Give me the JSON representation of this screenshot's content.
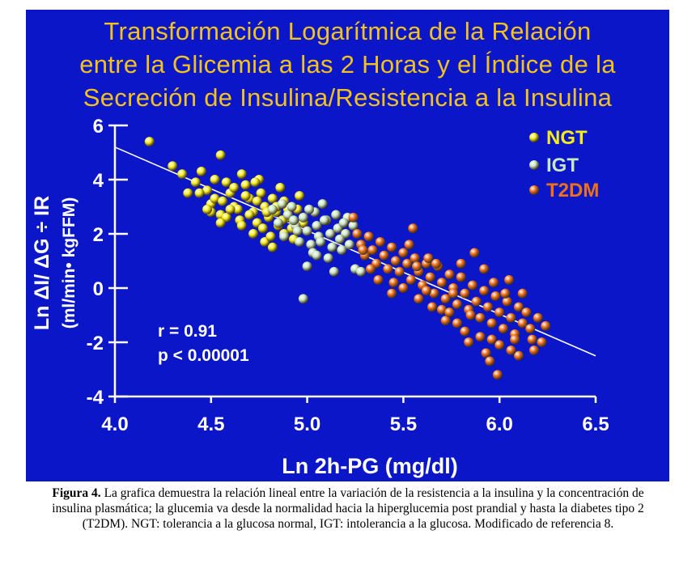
{
  "title_lines": [
    "Transformación Logarítmica de la Relación",
    "entre la Glicemia a las 2 Horas y el Índice de la",
    "Secreción de Insulina/Resistencia a la Insulina"
  ],
  "caption": {
    "label": "Figura 4.",
    "text": "La grafica demuestra la relación lineal entre la variación de la resistencia a la insulina y la concentración de insulina plasmática; la glucemia va desde la normalidad hacia la hiperglucemia post prandial y hasta la diabetes tipo 2 (T2DM). NGT: tolerancia a la glucosa normal, IGT: intolerancia a la glucosa. Modificado de referencia 8."
  },
  "colors": {
    "background": "#0a16c8",
    "title": "#f2c21e",
    "axis": "#ffffff",
    "NGT": "#f5ec1a",
    "IGT": "#c8e6c0",
    "T2DM": "#f07018",
    "regression": "#ffffff"
  },
  "chart_data": {
    "type": "scatter",
    "xlabel": "Ln 2h-PG (mg/dl)",
    "ylabel": "Ln ΔI/ ΔG ÷ IR",
    "ylabel2": "(ml/min• kgFFM)",
    "xlim": [
      4.0,
      6.5
    ],
    "ylim": [
      -4,
      6
    ],
    "xticks": [
      "4.0",
      "4.5",
      "5.0",
      "5.5",
      "6.0",
      "6.5"
    ],
    "yticks": [
      "6",
      "4",
      "2",
      "0",
      "-2",
      "-4"
    ],
    "grid": false,
    "legend_position": "top-right",
    "annotations": [
      "r = 0.91",
      "p < 0.00001"
    ],
    "regression": {
      "x": [
        4.0,
        6.5
      ],
      "y": [
        5.2,
        -2.5
      ]
    },
    "series": [
      {
        "name": "NGT",
        "color_key": "NGT",
        "points": [
          [
            4.18,
            5.4
          ],
          [
            4.55,
            4.9
          ],
          [
            4.3,
            4.5
          ],
          [
            4.35,
            4.2
          ],
          [
            4.38,
            3.5
          ],
          [
            4.45,
            4.3
          ],
          [
            4.42,
            3.9
          ],
          [
            4.48,
            3.6
          ],
          [
            4.5,
            3.1
          ],
          [
            4.52,
            3.3
          ],
          [
            4.55,
            2.7
          ],
          [
            4.58,
            3.9
          ],
          [
            4.6,
            3.5
          ],
          [
            4.62,
            3.0
          ],
          [
            4.65,
            2.5
          ],
          [
            4.66,
            4.2
          ],
          [
            4.68,
            3.8
          ],
          [
            4.7,
            3.3
          ],
          [
            4.72,
            2.8
          ],
          [
            4.74,
            2.4
          ],
          [
            4.75,
            4.0
          ],
          [
            4.76,
            3.5
          ],
          [
            4.78,
            3.0
          ],
          [
            4.8,
            2.6
          ],
          [
            4.82,
            3.3
          ],
          [
            4.84,
            2.8
          ],
          [
            4.85,
            2.3
          ],
          [
            4.86,
            3.7
          ],
          [
            4.88,
            2.0
          ],
          [
            4.88,
            3.2
          ],
          [
            4.9,
            2.6
          ],
          [
            4.92,
            2.2
          ],
          [
            4.93,
            1.8
          ],
          [
            4.95,
            2.9
          ],
          [
            4.96,
            3.4
          ],
          [
            4.98,
            2.4
          ],
          [
            4.82,
            1.5
          ],
          [
            4.78,
            1.7
          ],
          [
            4.72,
            2.0
          ],
          [
            4.64,
            2.9
          ],
          [
            4.58,
            2.6
          ],
          [
            4.5,
            2.8
          ],
          [
            4.44,
            3.5
          ],
          [
            4.68,
            3.4
          ],
          [
            4.62,
            3.7
          ],
          [
            4.6,
            2.9
          ],
          [
            4.52,
            4.0
          ],
          [
            4.56,
            3.2
          ],
          [
            4.7,
            2.7
          ],
          [
            4.73,
            3.9
          ],
          [
            4.77,
            2.2
          ],
          [
            4.81,
            1.9
          ],
          [
            4.84,
            3.0
          ],
          [
            4.9,
            2.9
          ],
          [
            4.87,
            2.5
          ],
          [
            4.55,
            2.4
          ],
          [
            4.48,
            2.9
          ],
          [
            4.66,
            2.3
          ],
          [
            4.74,
            3.2
          ],
          [
            4.79,
            2.8
          ]
        ]
      },
      {
        "name": "IGT",
        "color_key": "IGT",
        "points": [
          [
            4.82,
            2.9
          ],
          [
            4.85,
            2.4
          ],
          [
            4.88,
            1.9
          ],
          [
            4.9,
            2.7
          ],
          [
            4.92,
            3.0
          ],
          [
            4.94,
            2.3
          ],
          [
            4.96,
            1.7
          ],
          [
            4.98,
            2.6
          ],
          [
            5.0,
            2.1
          ],
          [
            5.02,
            1.6
          ],
          [
            5.04,
            2.8
          ],
          [
            5.05,
            2.3
          ],
          [
            5.06,
            1.9
          ],
          [
            5.08,
            3.1
          ],
          [
            5.1,
            2.5
          ],
          [
            5.12,
            2.0
          ],
          [
            5.13,
            1.5
          ],
          [
            5.15,
            2.7
          ],
          [
            5.16,
            2.2
          ],
          [
            5.18,
            1.4
          ],
          [
            5.2,
            2.0
          ],
          [
            5.22,
            1.6
          ],
          [
            5.24,
            2.3
          ],
          [
            5.25,
            0.7
          ],
          [
            5.14,
            0.6
          ],
          [
            5.0,
            0.8
          ],
          [
            4.98,
            -0.4
          ],
          [
            5.28,
            0.6
          ],
          [
            4.93,
            2.5
          ],
          [
            5.03,
            1.3
          ],
          [
            5.09,
            2.5
          ],
          [
            5.17,
            1.8
          ],
          [
            4.87,
            3.1
          ],
          [
            5.21,
            2.6
          ],
          [
            5.11,
            1.1
          ],
          [
            5.07,
            1.7
          ],
          [
            4.95,
            2.1
          ],
          [
            5.01,
            2.9
          ],
          [
            5.19,
            2.4
          ],
          [
            5.05,
            1.2
          ]
        ]
      },
      {
        "name": "T2DM",
        "color_key": "T2DM",
        "points": [
          [
            5.24,
            2.6
          ],
          [
            5.26,
            2.0
          ],
          [
            5.28,
            1.6
          ],
          [
            5.3,
            1.2
          ],
          [
            5.32,
            1.9
          ],
          [
            5.34,
            1.4
          ],
          [
            5.36,
            0.9
          ],
          [
            5.38,
            1.7
          ],
          [
            5.4,
            1.2
          ],
          [
            5.42,
            0.7
          ],
          [
            5.44,
            1.5
          ],
          [
            5.46,
            1.0
          ],
          [
            5.48,
            0.6
          ],
          [
            5.5,
            1.3
          ],
          [
            5.52,
            0.9
          ],
          [
            5.54,
            0.3
          ],
          [
            5.55,
            2.2
          ],
          [
            5.56,
            1.1
          ],
          [
            5.58,
            0.6
          ],
          [
            5.6,
            0.1
          ],
          [
            5.62,
            0.9
          ],
          [
            5.64,
            0.4
          ],
          [
            5.66,
            -0.2
          ],
          [
            5.68,
            0.8
          ],
          [
            5.7,
            0.2
          ],
          [
            5.72,
            -0.4
          ],
          [
            5.74,
            0.5
          ],
          [
            5.76,
            0.0
          ],
          [
            5.78,
            -0.6
          ],
          [
            5.8,
            0.4
          ],
          [
            5.82,
            -0.2
          ],
          [
            5.84,
            -0.8
          ],
          [
            5.86,
            0.1
          ],
          [
            5.88,
            -0.5
          ],
          [
            5.9,
            -1.1
          ],
          [
            5.92,
            -0.1
          ],
          [
            5.94,
            -0.7
          ],
          [
            5.96,
            -1.3
          ],
          [
            5.98,
            -0.3
          ],
          [
            6.0,
            -0.9
          ],
          [
            6.02,
            -1.5
          ],
          [
            6.04,
            -0.5
          ],
          [
            6.06,
            -1.1
          ],
          [
            6.08,
            -1.7
          ],
          [
            6.1,
            -0.7
          ],
          [
            6.12,
            -1.3
          ],
          [
            6.14,
            -0.9
          ],
          [
            6.16,
            -1.5
          ],
          [
            6.18,
            -2.3
          ],
          [
            6.2,
            -1.1
          ],
          [
            6.22,
            -2.0
          ],
          [
            6.24,
            -1.4
          ],
          [
            5.87,
            1.3
          ],
          [
            5.99,
            -3.2
          ],
          [
            5.93,
            -2.4
          ],
          [
            5.95,
            -2.7
          ],
          [
            6.1,
            -2.5
          ],
          [
            5.72,
            -1.2
          ],
          [
            5.82,
            -1.6
          ],
          [
            5.65,
            -0.7
          ],
          [
            5.58,
            -0.4
          ],
          [
            5.45,
            0.2
          ],
          [
            5.37,
            0.3
          ],
          [
            5.92,
            0.7
          ],
          [
            6.05,
            0.3
          ],
          [
            6.12,
            -0.2
          ],
          [
            5.84,
            -2.0
          ],
          [
            6.0,
            -2.1
          ],
          [
            6.06,
            -2.3
          ],
          [
            5.78,
            -1.3
          ],
          [
            5.9,
            -1.8
          ],
          [
            5.7,
            -0.8
          ],
          [
            5.62,
            -0.1
          ],
          [
            5.5,
            0.0
          ],
          [
            5.44,
            -0.2
          ],
          [
            5.33,
            0.7
          ],
          [
            5.29,
            1.4
          ],
          [
            5.53,
            1.6
          ],
          [
            5.67,
            0.9
          ],
          [
            5.76,
            -0.2
          ],
          [
            5.96,
            -1.9
          ],
          [
            6.03,
            -0.2
          ],
          [
            6.17,
            -1.9
          ],
          [
            5.85,
            -1.0
          ],
          [
            5.74,
            -0.9
          ],
          [
            5.57,
            0.8
          ],
          [
            5.63,
            1.1
          ],
          [
            5.8,
            0.9
          ],
          [
            5.97,
            0.2
          ],
          [
            6.08,
            -1.9
          ]
        ]
      }
    ]
  }
}
